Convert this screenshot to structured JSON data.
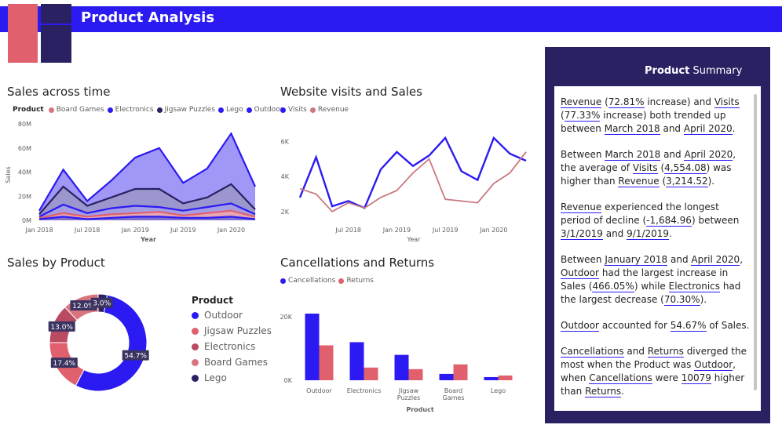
{
  "header": {
    "title": "Product Analysis"
  },
  "colors": {
    "banner": "#2b1bf2",
    "pink": "#e0606e",
    "navy": "#2a2163",
    "outdoor": "#2b1bf2",
    "jigsaw": "#e0606e",
    "electronics": "#b94a62",
    "board_games": "#d9747e",
    "lego": "#2a2163"
  },
  "sales_time": {
    "title": "Sales across time",
    "legend_label": "Product",
    "legend": [
      "Board Games",
      "Electronics",
      "Jigsaw Puzzles",
      "Lego",
      "Outdoor"
    ],
    "y_ticks": [
      "80M",
      "60M",
      "40M",
      "20M",
      "0M"
    ],
    "x_ticks": [
      "Jan 2018",
      "Jul 2018",
      "Jan 2019",
      "Jul 2019",
      "Jan 2020"
    ],
    "xlabel": "Year",
    "ylabel": "Sales"
  },
  "visits": {
    "title": "Website visits and Sales",
    "legend": [
      "Visits",
      "Revenue"
    ],
    "y_ticks": [
      "6K",
      "4K",
      "2K"
    ],
    "x_ticks": [
      "Jul 2018",
      "Jan 2019",
      "Jul 2019",
      "Jan 2020"
    ],
    "xlabel": "Year"
  },
  "sales_product": {
    "title": "Sales by Product",
    "legend_title": "Product",
    "legend": [
      "Outdoor",
      "Jigsaw Puzzles",
      "Electronics",
      "Board Games",
      "Lego"
    ],
    "labels": [
      "54.7%",
      "17.4%",
      "13.0%",
      "12.0%",
      "3.0%"
    ]
  },
  "cancellations": {
    "title": "Cancellations and Returns",
    "legend": [
      "Cancellations",
      "Returns"
    ],
    "y_ticks": [
      "20K",
      "0K"
    ],
    "categories": [
      "Outdoor",
      "Electronics",
      "Jigsaw Puzzles",
      "Board Games",
      "Lego"
    ],
    "xlabel": "Product"
  },
  "summary": {
    "title_bold": "Product",
    "title_rest": " Summary"
  },
  "chart_data": [
    {
      "type": "area",
      "title": "Sales across time",
      "xlabel": "Year",
      "ylabel": "Sales",
      "ylim": [
        0,
        80000000
      ],
      "x": [
        "2018-01",
        "2018-04",
        "2018-07",
        "2018-10",
        "2019-01",
        "2019-04",
        "2019-07",
        "2019-10",
        "2020-01",
        "2020-04"
      ],
      "series": [
        {
          "name": "Outdoor",
          "values": [
            8000000,
            42000000,
            16000000,
            33000000,
            52000000,
            60000000,
            31000000,
            43000000,
            72000000,
            28000000
          ]
        },
        {
          "name": "Lego",
          "values": [
            1000000,
            3000000,
            1000000,
            2000000,
            3000000,
            3000000,
            2000000,
            2000000,
            3000000,
            1000000
          ]
        },
        {
          "name": "Jigsaw Puzzles",
          "values": [
            5000000,
            28000000,
            12000000,
            19000000,
            26000000,
            26000000,
            14000000,
            19000000,
            30000000,
            9000000
          ]
        },
        {
          "name": "Electronics",
          "values": [
            3000000,
            13000000,
            6000000,
            10000000,
            12000000,
            11000000,
            8000000,
            11000000,
            14000000,
            5000000
          ]
        },
        {
          "name": "Board Games",
          "values": [
            2000000,
            6000000,
            3000000,
            5000000,
            6000000,
            7000000,
            4000000,
            6000000,
            8000000,
            3000000
          ]
        }
      ]
    },
    {
      "type": "line",
      "title": "Website visits and Sales",
      "xlabel": "Year",
      "ylim": [
        1500,
        7000
      ],
      "x": [
        "2018-01",
        "2018-03",
        "2018-05",
        "2018-07",
        "2018-09",
        "2018-11",
        "2019-01",
        "2019-03",
        "2019-05",
        "2019-07",
        "2019-09",
        "2019-11",
        "2020-01",
        "2020-03",
        "2020-04"
      ],
      "series": [
        {
          "name": "Visits",
          "values": [
            2800,
            5100,
            2300,
            2600,
            2200,
            4400,
            5400,
            4600,
            5200,
            6200,
            4300,
            3800,
            6200,
            5300,
            4900
          ]
        },
        {
          "name": "Revenue",
          "values": [
            3300,
            3000,
            2000,
            2500,
            2200,
            2800,
            3200,
            4200,
            5000,
            2700,
            2600,
            2500,
            3600,
            4200,
            5400
          ]
        }
      ]
    },
    {
      "type": "pie",
      "title": "Sales by Product",
      "categories": [
        "Outdoor",
        "Jigsaw Puzzles",
        "Electronics",
        "Board Games",
        "Lego"
      ],
      "values": [
        54.7,
        17.4,
        13.0,
        12.0,
        3.0
      ]
    },
    {
      "type": "bar",
      "title": "Cancellations and Returns",
      "xlabel": "Product",
      "categories": [
        "Outdoor",
        "Electronics",
        "Jigsaw Puzzles",
        "Board Games",
        "Lego"
      ],
      "ylim": [
        0,
        20000
      ],
      "series": [
        {
          "name": "Cancellations",
          "values": [
            21000,
            12000,
            8000,
            2000,
            1000
          ]
        },
        {
          "name": "Returns",
          "values": [
            11000,
            4000,
            3500,
            5000,
            1500
          ]
        }
      ]
    }
  ]
}
